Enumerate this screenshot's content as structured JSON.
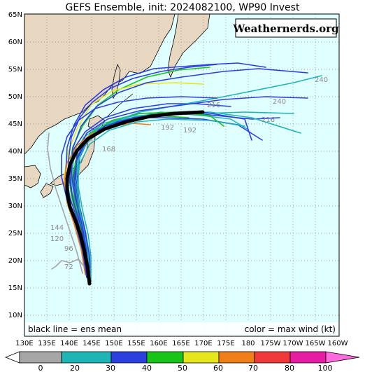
{
  "title": "GEFS Ensemble, init: 2024082100, WP90 Invest",
  "watermark": "Weathernerds.org",
  "legend": {
    "left": "black line = ens mean",
    "right": "color = max wind (kt)"
  },
  "lat_labels": [
    "65N",
    "60N",
    "55N",
    "50N",
    "45N",
    "40N",
    "35N",
    "30N",
    "25N",
    "20N",
    "15N",
    "10N"
  ],
  "lon_labels": [
    "130E",
    "135E",
    "140E",
    "145E",
    "150E",
    "155E",
    "160E",
    "165E",
    "170E",
    "175E",
    "180",
    "175W",
    "170W",
    "165W",
    "160W"
  ],
  "hour_labels": [
    "240",
    "240",
    "216",
    "216",
    "192",
    "192",
    "168",
    "144",
    "120",
    "96",
    "72"
  ],
  "colorbar": {
    "ticks": [
      "0",
      "20",
      "30",
      "40",
      "50",
      "60",
      "70",
      "80",
      "100"
    ],
    "colors": [
      "#a6a6a6",
      "#1fb5b5",
      "#2e3fe0",
      "#19c419",
      "#e6e61c",
      "#f07f19",
      "#f03a3a",
      "#e61ca3",
      "#ff6bdc"
    ]
  },
  "colors": {
    "ocean": "#e0ffff",
    "land": "#e8d8c2",
    "grid": "#888888",
    "mean": "#000000"
  }
}
